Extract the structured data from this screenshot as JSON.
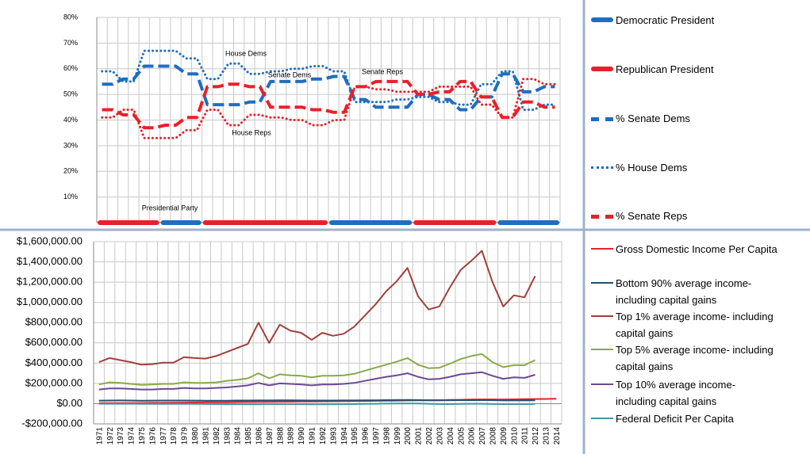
{
  "chart_data": [
    {
      "type": "line",
      "categories": [
        "1971",
        "1972",
        "1973",
        "1974",
        "1975",
        "1976",
        "1977",
        "1978",
        "1979",
        "1980",
        "1981",
        "1982",
        "1983",
        "1984",
        "1985",
        "1986",
        "1987",
        "1988",
        "1989",
        "1990",
        "1991",
        "1992",
        "1993",
        "1994",
        "1995",
        "1996",
        "1997",
        "1998",
        "1999",
        "2000",
        "2001",
        "2002",
        "2003",
        "2004",
        "2005",
        "2006",
        "2007",
        "2008",
        "2009",
        "2010",
        "2011",
        "2012",
        "2013",
        "2014"
      ],
      "ylim": [
        0,
        80
      ],
      "yticks": [
        {
          "value": 10,
          "label": "10%"
        },
        {
          "value": 20,
          "label": "20%"
        },
        {
          "value": 30,
          "label": "30%"
        },
        {
          "value": 40,
          "label": "40%"
        },
        {
          "value": 50,
          "label": "50%"
        },
        {
          "value": 60,
          "label": "60%"
        },
        {
          "value": 70,
          "label": "70%"
        },
        {
          "value": 80,
          "label": "80%"
        }
      ],
      "grid": true,
      "annotations": [
        "House Dems",
        "Senate Dems",
        "Senate Reps",
        "House Reps",
        "Presidential Party"
      ],
      "series": [
        {
          "name": "Democratic President",
          "color": "#1f6ebf",
          "dash": "thick",
          "values": [
            null,
            null,
            null,
            null,
            null,
            null,
            0,
            0,
            0,
            0,
            null,
            null,
            null,
            null,
            null,
            null,
            null,
            null,
            null,
            null,
            null,
            null,
            0,
            0,
            0,
            0,
            0,
            0,
            0,
            0,
            null,
            null,
            null,
            null,
            null,
            null,
            null,
            null,
            0,
            0,
            0,
            0,
            0,
            0
          ]
        },
        {
          "name": "Republican President",
          "color": "#e8202a",
          "dash": "thick",
          "values": [
            0,
            0,
            0,
            0,
            0,
            0,
            null,
            null,
            null,
            null,
            0,
            0,
            0,
            0,
            0,
            0,
            0,
            0,
            0,
            0,
            0,
            0,
            null,
            null,
            null,
            null,
            null,
            null,
            null,
            null,
            0,
            0,
            0,
            0,
            0,
            0,
            0,
            0,
            null,
            null,
            null,
            null,
            null,
            null
          ]
        },
        {
          "name": "% Senate Dems",
          "color": "#1f6ebf",
          "dash": "dash",
          "values": [
            54,
            54,
            56,
            56,
            61,
            61,
            61,
            61,
            58,
            58,
            46,
            46,
            46,
            46,
            47,
            47,
            55,
            55,
            55,
            55,
            56,
            56,
            57,
            57,
            48,
            48,
            45,
            45,
            45,
            45,
            50,
            50,
            48,
            48,
            44,
            44,
            49,
            49,
            58,
            58,
            51,
            51,
            53,
            53
          ]
        },
        {
          "name": "% House Dems",
          "color": "#1f6ebf",
          "dash": "dot",
          "values": [
            59,
            59,
            55,
            55,
            67,
            67,
            67,
            67,
            64,
            64,
            56,
            56,
            62,
            62,
            58,
            58,
            59,
            59,
            60,
            60,
            61,
            61,
            59,
            59,
            47,
            47,
            47,
            47,
            48,
            48,
            49,
            49,
            47,
            47,
            46,
            46,
            54,
            54,
            59,
            59,
            44,
            44,
            46,
            46
          ]
        },
        {
          "name": "% Senate Reps",
          "color": "#e8202a",
          "dash": "dash",
          "values": [
            44,
            44,
            42,
            42,
            37,
            37,
            38,
            38,
            41,
            41,
            53,
            53,
            54,
            54,
            53,
            53,
            45,
            45,
            45,
            45,
            44,
            44,
            43,
            43,
            53,
            53,
            55,
            55,
            55,
            55,
            50,
            50,
            51,
            51,
            55,
            55,
            49,
            49,
            41,
            41,
            47,
            47,
            45,
            45
          ]
        },
        {
          "color": "#e8202a",
          "dash": "dot",
          "values": [
            41,
            41,
            44,
            44,
            33,
            33,
            33,
            33,
            36,
            36,
            44,
            44,
            38,
            38,
            42,
            42,
            41,
            41,
            40,
            40,
            38,
            38,
            40,
            40,
            53,
            53,
            52,
            52,
            51,
            51,
            51,
            51,
            53,
            53,
            53,
            53,
            46,
            46,
            41,
            41,
            56,
            56,
            54,
            54
          ]
        }
      ]
    },
    {
      "type": "line",
      "categories": [
        "1971",
        "1972",
        "1973",
        "1974",
        "1975",
        "1976",
        "1977",
        "1978",
        "1979",
        "1980",
        "1981",
        "1982",
        "1983",
        "1984",
        "1985",
        "1986",
        "1987",
        "1988",
        "1989",
        "1990",
        "1991",
        "1992",
        "1993",
        "1994",
        "1995",
        "1996",
        "1997",
        "1998",
        "1999",
        "2000",
        "2001",
        "2002",
        "2003",
        "2004",
        "2005",
        "2006",
        "2007",
        "2008",
        "2009",
        "2010",
        "2011",
        "2012",
        "2013",
        "2014"
      ],
      "ylim": [
        -200000,
        1600000
      ],
      "yticks": [
        {
          "value": -200000,
          "label": "-$200,000.00"
        },
        {
          "value": 0,
          "label": "$0.00"
        },
        {
          "value": 200000,
          "label": "$200,000.00"
        },
        {
          "value": 400000,
          "label": "$400,000.00"
        },
        {
          "value": 600000,
          "label": "$600,000.00"
        },
        {
          "value": 800000,
          "label": "$800,000.00"
        },
        {
          "value": 1000000,
          "label": "$1,000,000.00"
        },
        {
          "value": 1200000,
          "label": "$1,200,000.00"
        },
        {
          "value": 1400000,
          "label": "$1,400,000.00"
        },
        {
          "value": 1600000,
          "label": "$1,600,000.00"
        }
      ],
      "grid": true,
      "series": [
        {
          "name": "Gross Domestic Income Per Capita",
          "color": "#e8202a",
          "values": [
            5000,
            5500,
            6000,
            6500,
            7000,
            7800,
            8500,
            9500,
            10500,
            11500,
            12500,
            13000,
            14000,
            15000,
            16000,
            16800,
            17500,
            18500,
            19500,
            20500,
            21000,
            22000,
            23000,
            24000,
            25000,
            26000,
            27500,
            28500,
            30000,
            31500,
            32500,
            33000,
            34000,
            36000,
            38000,
            40000,
            41500,
            42000,
            41000,
            42500,
            44000,
            45500,
            46500,
            48000
          ]
        },
        {
          "name": "Bottom 90%  average income- including capital gains",
          "color": "#2a4d6e",
          "values": [
            30000,
            31000,
            31500,
            30500,
            29500,
            30000,
            30500,
            31000,
            31000,
            30000,
            29500,
            29000,
            29500,
            30500,
            31000,
            31500,
            32000,
            32500,
            32500,
            32000,
            31000,
            31000,
            31000,
            31500,
            32000,
            32500,
            33500,
            34500,
            35500,
            36000,
            35000,
            34000,
            33500,
            34000,
            34500,
            35000,
            35500,
            34000,
            32000,
            32000,
            31500,
            32500,
            null,
            null
          ]
        },
        {
          "name": "Top 1%  average income- including capital gains",
          "color": "#a0403c",
          "values": [
            410000,
            450000,
            430000,
            410000,
            385000,
            390000,
            405000,
            405000,
            460000,
            450000,
            445000,
            470000,
            510000,
            550000,
            590000,
            800000,
            600000,
            780000,
            720000,
            700000,
            630000,
            700000,
            670000,
            690000,
            760000,
            870000,
            980000,
            1110000,
            1210000,
            1340000,
            1060000,
            930000,
            960000,
            1150000,
            1320000,
            1410000,
            1510000,
            1200000,
            960000,
            1070000,
            1050000,
            1260000,
            null,
            null
          ]
        },
        {
          "name": "Top 5% average income- including capital gains",
          "color": "#8aa84a",
          "values": [
            190000,
            210000,
            205000,
            195000,
            185000,
            190000,
            195000,
            195000,
            210000,
            205000,
            205000,
            210000,
            225000,
            235000,
            250000,
            300000,
            250000,
            290000,
            280000,
            275000,
            260000,
            275000,
            275000,
            280000,
            295000,
            325000,
            355000,
            385000,
            415000,
            450000,
            385000,
            350000,
            355000,
            395000,
            440000,
            470000,
            490000,
            410000,
            360000,
            380000,
            380000,
            430000,
            null,
            null
          ]
        },
        {
          "name": "Top 10%  average income- including capital gains",
          "color": "#6a4a94",
          "values": [
            140000,
            150000,
            150000,
            145000,
            140000,
            140000,
            145000,
            145000,
            155000,
            150000,
            150000,
            155000,
            160000,
            170000,
            180000,
            205000,
            180000,
            200000,
            195000,
            190000,
            180000,
            190000,
            190000,
            195000,
            205000,
            225000,
            245000,
            265000,
            280000,
            300000,
            265000,
            240000,
            245000,
            265000,
            290000,
            300000,
            310000,
            275000,
            245000,
            260000,
            255000,
            285000,
            null,
            null
          ]
        },
        {
          "name": "Federal Deficit Per Capita",
          "color": "#3e9aa6",
          "values": [
            -1000,
            -1200,
            -1000,
            -500,
            -2500,
            -3000,
            -2500,
            -2000,
            -1500,
            -3000,
            -3500,
            -4500,
            -6000,
            -5500,
            -6000,
            -6500,
            -4500,
            -4500,
            -4500,
            -5500,
            -6500,
            -7000,
            -6000,
            -5000,
            -4000,
            -3000,
            -1500,
            0,
            1000,
            2000,
            1000,
            -1500,
            -4000,
            -4000,
            -2500,
            -1500,
            -1500,
            -3500,
            -4500,
            -4200,
            -4000,
            -3500,
            null,
            null
          ]
        }
      ]
    }
  ]
}
